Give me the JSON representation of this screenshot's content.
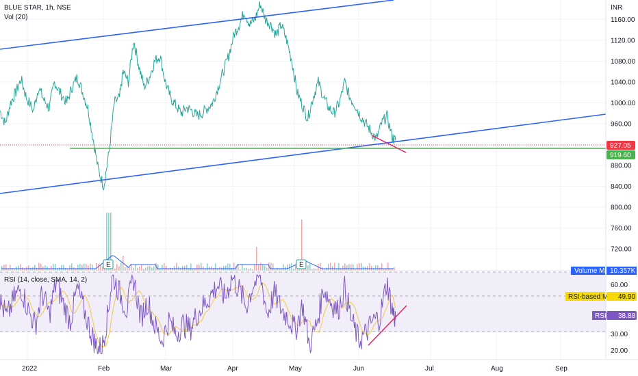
{
  "symbol_line": "BLUE STAR, 1h, NSE",
  "vol_line": "Vol (20)",
  "rsi_line": "RSI (14, close, SMA, 14, 2)",
  "currency": "INR",
  "price_tags": {
    "last": "927.05",
    "level": "919.60",
    "volume_ma_label": "Volume MA",
    "volume_ma_value": "10.357K",
    "rsi_ma_label": "RSI-based MA",
    "rsi_ma_value": "49.90",
    "rsi_label": "RSI",
    "rsi_value": "38.88"
  },
  "earnings_marker": "E",
  "colors": {
    "up": "#26a69a",
    "down": "#ef5350",
    "trend": "#2962ff",
    "level": "#4caf50",
    "rsi": "#7e57c2",
    "rsi_ma": "#f5c842",
    "rsi_band": "#ede7f6",
    "vol_ma": "#2962ff",
    "tag_last": "#f23645",
    "tag_level": "#4caf50",
    "tag_rsi": "#7e57c2",
    "tag_rsi_ma": "#f5d90a",
    "drawing_red": "#e91e63"
  },
  "chart_data": {
    "type": "line",
    "title": "BLUE STAR, 1h, NSE",
    "price_axis": {
      "ticks": [
        "1160.00",
        "1120.00",
        "1080.00",
        "1040.00",
        "1000.00",
        "960.00",
        "920.00",
        "880.00",
        "840.00",
        "800.00",
        "760.00",
        "720.00"
      ],
      "range": [
        712,
        1184
      ]
    },
    "rsi_axis": {
      "ticks": [
        "60.00",
        "30.00",
        "20.00"
      ],
      "dashed_levels": [
        70,
        30
      ],
      "range": [
        16,
        67
      ]
    },
    "time_axis": [
      "2022",
      "Feb",
      "Mar",
      "Apr",
      "May",
      "Jun",
      "Jul",
      "Aug",
      "Sep"
    ],
    "price_path": [
      [
        0,
        985
      ],
      [
        0.03,
        960
      ],
      [
        0.06,
        1000
      ],
      [
        0.09,
        1020
      ],
      [
        0.12,
        1045
      ],
      [
        0.15,
        1010
      ],
      [
        0.19,
        985
      ],
      [
        0.22,
        1030
      ],
      [
        0.25,
        1005
      ],
      [
        0.28,
        990
      ],
      [
        0.31,
        1040
      ],
      [
        0.34,
        1020
      ],
      [
        0.38,
        1000
      ],
      [
        0.41,
        1030
      ],
      [
        0.44,
        1050
      ],
      [
        0.47,
        1020
      ],
      [
        0.5,
        990
      ],
      [
        0.53,
        930
      ],
      [
        0.56,
        870
      ],
      [
        0.59,
        840
      ],
      [
        0.62,
        905
      ],
      [
        0.65,
        1000
      ],
      [
        0.68,
        1010
      ],
      [
        0.7,
        1060
      ],
      [
        0.73,
        1040
      ],
      [
        0.76,
        1120
      ],
      [
        0.79,
        1070
      ],
      [
        0.82,
        1030
      ],
      [
        0.85,
        1050
      ],
      [
        0.88,
        1080
      ],
      [
        0.91,
        1090
      ],
      [
        0.94,
        1040
      ],
      [
        0.97,
        1010
      ],
      [
        1.0,
        995
      ],
      [
        1.03,
        980
      ],
      [
        1.06,
        990
      ],
      [
        1.09,
        985
      ],
      [
        1.12,
        975
      ],
      [
        1.15,
        980
      ],
      [
        1.18,
        990
      ],
      [
        1.21,
        1000
      ],
      [
        1.24,
        1030
      ],
      [
        1.27,
        1060
      ],
      [
        1.3,
        1090
      ],
      [
        1.33,
        1130
      ],
      [
        1.36,
        1150
      ],
      [
        1.39,
        1175
      ],
      [
        1.42,
        1150
      ],
      [
        1.45,
        1160
      ],
      [
        1.48,
        1190
      ],
      [
        1.51,
        1160
      ],
      [
        1.54,
        1150
      ],
      [
        1.57,
        1130
      ],
      [
        1.6,
        1150
      ],
      [
        1.63,
        1120
      ],
      [
        1.66,
        1080
      ],
      [
        1.69,
        1020
      ],
      [
        1.72,
        995
      ],
      [
        1.75,
        970
      ],
      [
        1.78,
        1010
      ],
      [
        1.81,
        1040
      ],
      [
        1.84,
        1010
      ],
      [
        1.87,
        990
      ],
      [
        1.9,
        980
      ],
      [
        1.93,
        1000
      ],
      [
        1.96,
        1040
      ],
      [
        1.99,
        1010
      ],
      [
        2.02,
        995
      ],
      [
        2.05,
        975
      ],
      [
        2.08,
        960
      ],
      [
        2.11,
        945
      ],
      [
        2.14,
        930
      ],
      [
        2.17,
        960
      ],
      [
        2.2,
        975
      ],
      [
        2.23,
        935
      ],
      [
        2.25,
        927
      ]
    ],
    "rsi_path": [
      [
        0,
        50
      ],
      [
        0.04,
        40
      ],
      [
        0.08,
        52
      ],
      [
        0.12,
        58
      ],
      [
        0.16,
        45
      ],
      [
        0.2,
        35
      ],
      [
        0.24,
        55
      ],
      [
        0.28,
        42
      ],
      [
        0.32,
        62
      ],
      [
        0.36,
        48
      ],
      [
        0.4,
        38
      ],
      [
        0.44,
        58
      ],
      [
        0.48,
        44
      ],
      [
        0.52,
        30
      ],
      [
        0.55,
        22
      ],
      [
        0.58,
        21
      ],
      [
        0.61,
        40
      ],
      [
        0.64,
        66
      ],
      [
        0.68,
        55
      ],
      [
        0.72,
        45
      ],
      [
        0.76,
        64
      ],
      [
        0.8,
        40
      ],
      [
        0.84,
        50
      ],
      [
        0.88,
        35
      ],
      [
        0.92,
        26
      ],
      [
        0.96,
        38
      ],
      [
        1.0,
        30
      ],
      [
        1.04,
        36
      ],
      [
        1.08,
        33
      ],
      [
        1.12,
        42
      ],
      [
        1.16,
        48
      ],
      [
        1.2,
        54
      ],
      [
        1.24,
        60
      ],
      [
        1.28,
        52
      ],
      [
        1.32,
        65
      ],
      [
        1.36,
        57
      ],
      [
        1.4,
        47
      ],
      [
        1.44,
        60
      ],
      [
        1.48,
        66
      ],
      [
        1.52,
        42
      ],
      [
        1.56,
        55
      ],
      [
        1.6,
        45
      ],
      [
        1.64,
        40
      ],
      [
        1.68,
        32
      ],
      [
        1.72,
        48
      ],
      [
        1.76,
        23
      ],
      [
        1.8,
        36
      ],
      [
        1.84,
        58
      ],
      [
        1.88,
        50
      ],
      [
        1.92,
        44
      ],
      [
        1.96,
        58
      ],
      [
        2.0,
        38
      ],
      [
        2.04,
        26
      ],
      [
        2.08,
        30
      ],
      [
        2.12,
        38
      ],
      [
        2.16,
        40
      ],
      [
        2.2,
        62
      ],
      [
        2.23,
        45
      ],
      [
        2.25,
        38.88
      ]
    ]
  }
}
